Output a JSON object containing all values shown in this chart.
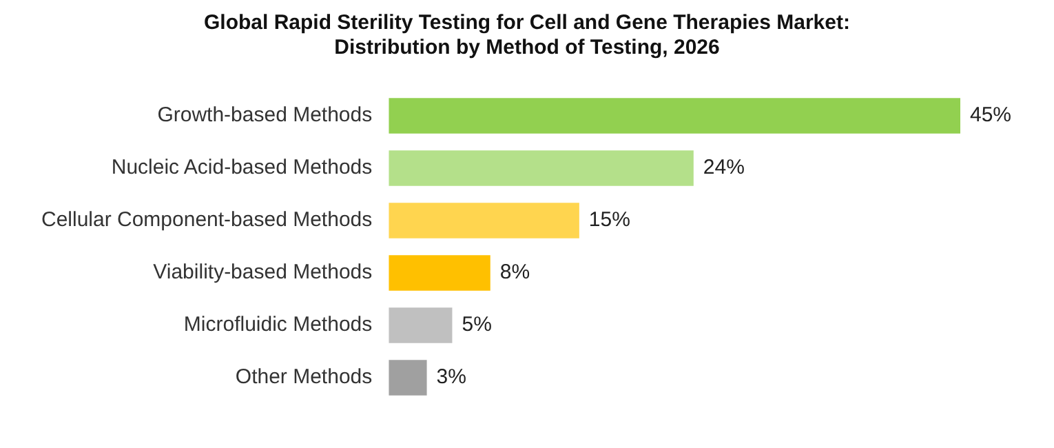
{
  "chart_data": {
    "type": "bar",
    "orientation": "horizontal",
    "title": "Global Rapid Sterility Testing for Cell and Gene Therapies Market: Distribution by Method of Testing, 2026",
    "categories": [
      "Growth-based Methods",
      "Nucleic Acid-based Methods",
      "Cellular Component-based Methods",
      "Viability-based Methods",
      "Microfluidic Methods",
      "Other Methods"
    ],
    "values": [
      45,
      24,
      15,
      8,
      5,
      3
    ],
    "colors": [
      "#92d050",
      "#b4e08a",
      "#ffd54f",
      "#ffc000",
      "#c0c0c0",
      "#a0a0a0"
    ],
    "value_labels": [
      "45%",
      "24%",
      "15%",
      "8%",
      "5%",
      "3%"
    ],
    "legend": false
  }
}
